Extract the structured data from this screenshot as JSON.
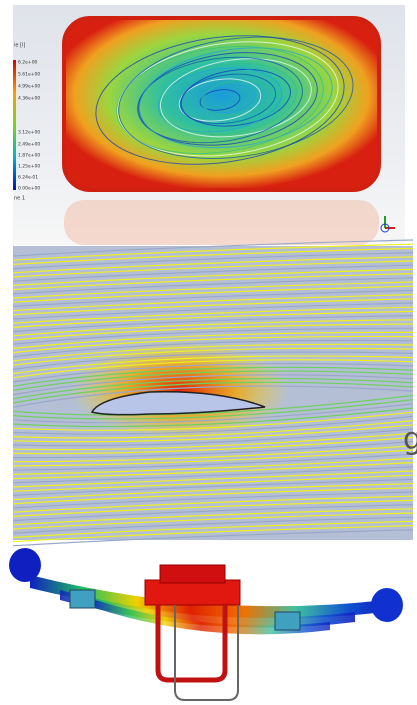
{
  "top_panel": {
    "legend_title": "ie [l]",
    "legend_labels": [
      "6.2e+00",
      "5.61e+00",
      "4.99e+00",
      "4.36e+00",
      "3.12e+00",
      "2.49e+00",
      "1.87e+00",
      "1.25e+00",
      "6.24e-01",
      "0.00e+00"
    ],
    "legend_footer": "ne 1"
  },
  "side_text": "g"
}
